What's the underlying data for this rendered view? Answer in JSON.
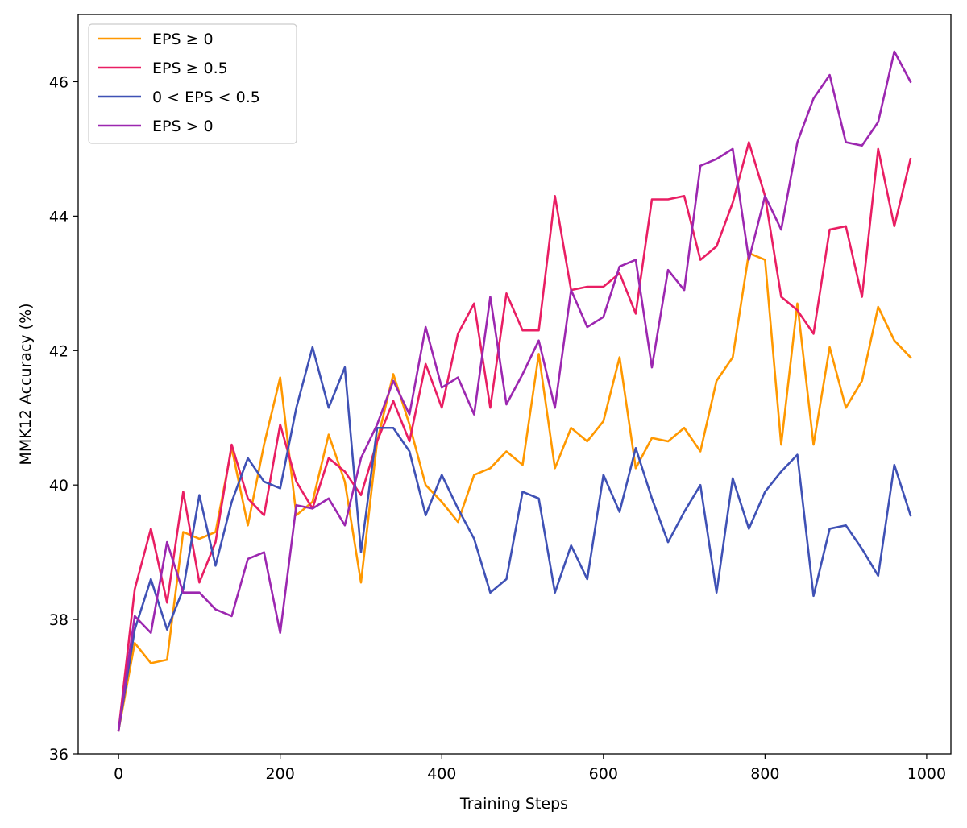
{
  "chart_data": {
    "type": "line",
    "title": "",
    "xlabel": "Training Steps",
    "ylabel": "MMK12 Accuracy (%)",
    "xlim": [
      -50,
      1030
    ],
    "ylim": [
      36,
      47
    ],
    "xticks": [
      0,
      200,
      400,
      600,
      800,
      1000
    ],
    "yticks": [
      36,
      38,
      40,
      42,
      44,
      46
    ],
    "grid": false,
    "legend_position": "top-left",
    "x": [
      0,
      20,
      40,
      60,
      80,
      100,
      120,
      140,
      160,
      180,
      200,
      220,
      240,
      260,
      280,
      300,
      320,
      340,
      360,
      380,
      400,
      420,
      440,
      460,
      480,
      500,
      520,
      540,
      560,
      580,
      600,
      620,
      640,
      660,
      680,
      700,
      720,
      740,
      760,
      780,
      800,
      820,
      840,
      860,
      880,
      900,
      920,
      940,
      960,
      980
    ],
    "series": [
      {
        "name": "EPS ≥ 0",
        "color": "#ff9800",
        "values": [
          36.35,
          37.65,
          37.35,
          37.4,
          39.3,
          39.2,
          39.3,
          40.55,
          39.4,
          40.6,
          41.6,
          39.55,
          39.75,
          40.75,
          40.05,
          38.55,
          40.65,
          41.65,
          40.9,
          40.0,
          39.75,
          39.45,
          40.15,
          40.25,
          40.5,
          40.3,
          41.95,
          40.25,
          40.85,
          40.65,
          40.95,
          41.9,
          40.25,
          40.7,
          40.65,
          40.85,
          40.5,
          41.55,
          41.9,
          43.45,
          43.35,
          40.6,
          42.7,
          40.6,
          42.05,
          41.15,
          41.55,
          42.65,
          42.15,
          41.9
        ]
      },
      {
        "name": "EPS ≥ 0.5",
        "color": "#e91e63",
        "values": [
          36.35,
          38.45,
          39.35,
          38.25,
          39.9,
          38.55,
          39.15,
          40.6,
          39.8,
          39.55,
          40.9,
          40.05,
          39.65,
          40.4,
          40.2,
          39.85,
          40.65,
          41.25,
          40.65,
          41.8,
          41.15,
          42.25,
          42.7,
          41.15,
          42.85,
          42.3,
          42.3,
          44.3,
          42.9,
          42.95,
          42.95,
          43.15,
          42.55,
          44.25,
          44.25,
          44.3,
          43.35,
          43.55,
          44.2,
          45.1,
          44.3,
          42.8,
          42.6,
          42.25,
          43.8,
          43.85,
          42.8,
          45.0,
          43.85,
          44.85
        ]
      },
      {
        "name": "0 < EPS < 0.5",
        "color": "#3f51b5",
        "values": [
          36.35,
          37.85,
          38.6,
          37.85,
          38.45,
          39.85,
          38.8,
          39.75,
          40.4,
          40.05,
          39.95,
          41.15,
          42.05,
          41.15,
          41.75,
          39.0,
          40.85,
          40.85,
          40.5,
          39.55,
          40.15,
          39.65,
          39.2,
          38.4,
          38.6,
          39.9,
          39.8,
          38.4,
          39.1,
          38.6,
          40.15,
          39.6,
          40.55,
          39.8,
          39.15,
          39.6,
          40.0,
          38.4,
          40.1,
          39.35,
          39.9,
          40.2,
          40.45,
          38.35,
          39.35,
          39.4,
          39.05,
          38.65,
          40.3,
          39.55
        ]
      },
      {
        "name": "EPS > 0",
        "color": "#9c27b0",
        "values": [
          36.35,
          38.05,
          37.8,
          39.15,
          38.4,
          38.4,
          38.15,
          38.05,
          38.9,
          39.0,
          37.8,
          39.7,
          39.65,
          39.8,
          39.4,
          40.4,
          40.9,
          41.55,
          41.05,
          42.35,
          41.45,
          41.6,
          41.05,
          42.8,
          41.2,
          41.65,
          42.15,
          41.15,
          42.9,
          42.35,
          42.5,
          43.25,
          43.35,
          41.75,
          43.2,
          42.9,
          44.75,
          44.85,
          45.0,
          43.35,
          44.3,
          43.8,
          45.1,
          45.75,
          46.1,
          45.1,
          45.05,
          45.4,
          46.45,
          46.0
        ]
      }
    ]
  }
}
